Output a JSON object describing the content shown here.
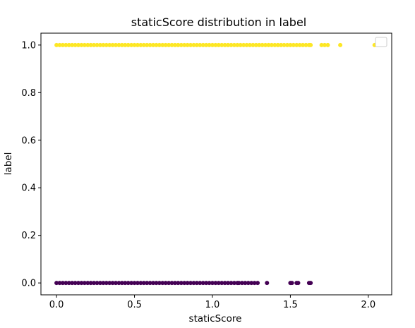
{
  "chart_data": {
    "type": "scatter",
    "title": "staticScore distribution in label",
    "xlabel": "staticScore",
    "ylabel": "label",
    "xlim": [
      -0.1,
      2.15
    ],
    "ylim": [
      -0.05,
      1.05
    ],
    "xticks": [
      0.0,
      0.5,
      1.0,
      1.5,
      2.0
    ],
    "xtick_labels": [
      "0.0",
      "0.5",
      "1.0",
      "1.5",
      "2.0"
    ],
    "yticks": [
      0.0,
      0.2,
      0.4,
      0.6,
      0.8,
      1.0
    ],
    "ytick_labels": [
      "0.0",
      "0.2",
      "0.4",
      "0.6",
      "0.8",
      "1.0"
    ],
    "grid": false,
    "legend": {
      "placement": "upper-right",
      "entries": []
    },
    "series": [
      {
        "color": "#fde725",
        "y": 1,
        "x": [
          0.0,
          0.02,
          0.04,
          0.06,
          0.08,
          0.1,
          0.12,
          0.14,
          0.16,
          0.18,
          0.2,
          0.22,
          0.24,
          0.26,
          0.28,
          0.3,
          0.32,
          0.34,
          0.36,
          0.38,
          0.4,
          0.42,
          0.44,
          0.46,
          0.48,
          0.5,
          0.52,
          0.54,
          0.56,
          0.58,
          0.6,
          0.62,
          0.64,
          0.66,
          0.68,
          0.7,
          0.72,
          0.74,
          0.76,
          0.78,
          0.8,
          0.82,
          0.84,
          0.86,
          0.88,
          0.9,
          0.92,
          0.94,
          0.96,
          0.98,
          1.0,
          1.02,
          1.04,
          1.06,
          1.08,
          1.1,
          1.12,
          1.14,
          1.16,
          1.18,
          1.2,
          1.22,
          1.24,
          1.26,
          1.28,
          1.3,
          1.32,
          1.34,
          1.36,
          1.38,
          1.4,
          1.42,
          1.44,
          1.46,
          1.48,
          1.5,
          1.52,
          1.54,
          1.56,
          1.58,
          1.6,
          1.62,
          1.63,
          1.7,
          1.72,
          1.74,
          1.82,
          2.04
        ]
      },
      {
        "color": "#440154",
        "y": 0,
        "x": [
          0.0,
          0.02,
          0.04,
          0.06,
          0.08,
          0.1,
          0.12,
          0.14,
          0.16,
          0.18,
          0.2,
          0.22,
          0.24,
          0.26,
          0.28,
          0.3,
          0.32,
          0.34,
          0.36,
          0.38,
          0.4,
          0.42,
          0.44,
          0.46,
          0.48,
          0.5,
          0.52,
          0.54,
          0.56,
          0.58,
          0.6,
          0.62,
          0.64,
          0.66,
          0.68,
          0.7,
          0.72,
          0.74,
          0.76,
          0.78,
          0.8,
          0.82,
          0.84,
          0.86,
          0.88,
          0.9,
          0.92,
          0.94,
          0.96,
          0.98,
          1.0,
          1.02,
          1.04,
          1.06,
          1.08,
          1.1,
          1.12,
          1.14,
          1.16,
          1.17,
          1.19,
          1.21,
          1.23,
          1.25,
          1.27,
          1.29,
          1.35,
          1.5,
          1.51,
          1.54,
          1.55,
          1.62,
          1.63
        ]
      }
    ]
  }
}
